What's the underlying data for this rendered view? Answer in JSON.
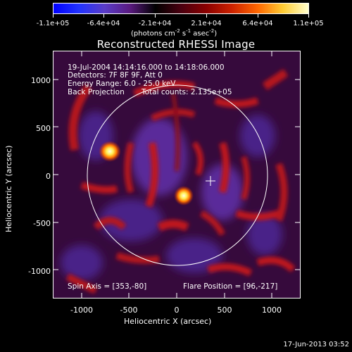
{
  "colorbar": {
    "labels": [
      "-1.1e+05",
      "-6.4e+04",
      "-2.1e+04",
      "2.1e+04",
      "6.4e+04",
      "1.1e+05"
    ],
    "units_main": "(photons cm",
    "units_exp1": "-2",
    "units_mid": " s",
    "units_exp2": "-1",
    "units_mid2": " asec",
    "units_exp3": "-2",
    "units_end": ")",
    "gradient_colors": [
      "#0000ff",
      "#2233ff",
      "#5a3cc8",
      "#5a1a80",
      "#000000",
      "#4a0010",
      "#8b0000",
      "#cc2200",
      "#ff6600",
      "#ffcc33",
      "#ffffcc"
    ]
  },
  "title": "Reconstructed RHESSI Image",
  "info": {
    "time": "19-Jul-2004 14:14:16.000 to 14:18:06.000",
    "detectors": "Detectors: 7F 8F 9F, Att 0",
    "energy": "Energy Range: 6.0 - 25.0 keV",
    "method": "Back Projection",
    "counts": "Total counts: 2.135e+05",
    "spin_axis": "Spin Axis = [353,-80]",
    "flare_position": "Flare Position = [96,-217]"
  },
  "axes": {
    "xlabel": "Heliocentric X (arcsec)",
    "ylabel": "Heliocentric Y (arcsec)",
    "xticks": [
      "-1000",
      "-500",
      "0",
      "500",
      "1000"
    ],
    "yticks": [
      "1000",
      "500",
      "0",
      "-500",
      "-1000"
    ],
    "xrange": [
      -1300,
      1300
    ],
    "yrange": [
      -1300,
      1300
    ]
  },
  "footer": {
    "date": "17-Jun-2013 03:52"
  }
}
